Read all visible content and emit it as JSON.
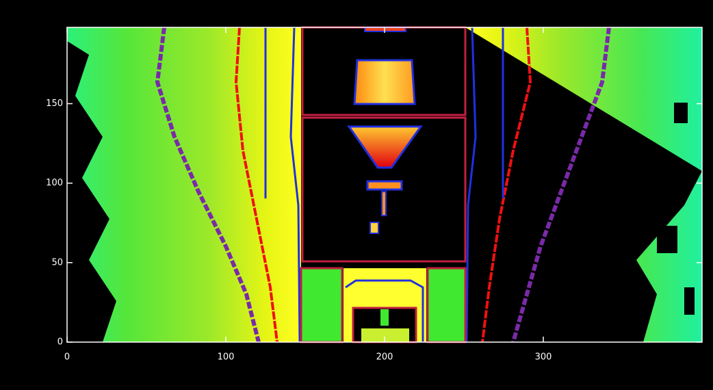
{
  "chart_data": {
    "type": "image",
    "xlim": [
      0,
      400
    ],
    "ylim": [
      0,
      198
    ],
    "xticks": [
      0,
      100,
      200,
      300
    ],
    "yticks": [
      0,
      50,
      100,
      150
    ]
  }
}
